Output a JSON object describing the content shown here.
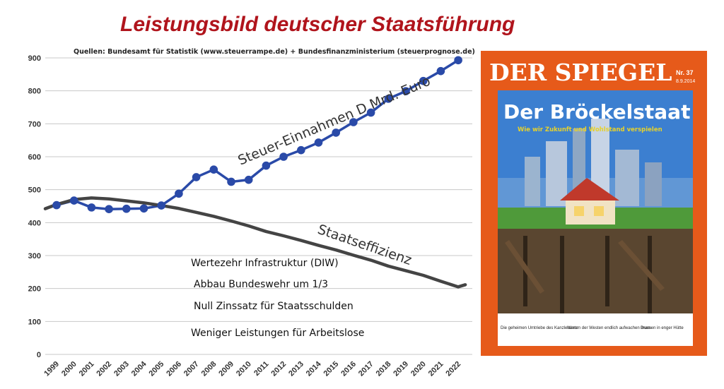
{
  "title": "Leistungsbild deutscher Staatsführung",
  "source": "Quellen: Bundesamt für Statistik  (www.steuerrampe.de) + Bundesfinanzministerium (steuerprognose.de)",
  "chart_data": {
    "type": "line",
    "ylim": [
      0,
      900
    ],
    "yticks": [
      0,
      100,
      200,
      300,
      400,
      500,
      600,
      700,
      800,
      900
    ],
    "x": [
      "1999",
      "2000",
      "2001",
      "2002",
      "2003",
      "2004",
      "2005",
      "2006",
      "2007",
      "2008",
      "2009",
      "2010",
      "2011",
      "2012",
      "2013",
      "2014",
      "2015",
      "2016",
      "2017",
      "2018",
      "2019",
      "2020",
      "2021",
      "2022"
    ],
    "series": [
      {
        "name": "Steuer-Einnahmen D Mrd. Euro",
        "color": "#2a4aa8",
        "marker": "circle",
        "values": [
          453,
          467,
          446,
          441,
          442,
          443,
          452,
          488,
          538,
          561,
          524,
          530,
          573,
          600,
          620,
          643,
          673,
          705,
          734,
          776,
          799,
          830,
          860,
          893
        ]
      },
      {
        "name": "Staatseffizienz",
        "color": "#444444",
        "marker": "none",
        "values": [
          455,
          470,
          475,
          472,
          466,
          460,
          452,
          443,
          431,
          419,
          405,
          390,
          373,
          360,
          346,
          331,
          317,
          301,
          286,
          268,
          254,
          240,
          222,
          205
        ]
      }
    ],
    "annotations": [
      "Wertezehr Infrastruktur (DIW)",
      "Abbau Bundeswehr um 1/3",
      "Null Zinssatz für Staatsschulden",
      "Weniger Leistungen für Arbeitslose"
    ],
    "grid": true
  },
  "magazine": {
    "masthead": "DER SPIEGEL",
    "issue_no": "Nr. 37",
    "issue_date": "8.9.2014",
    "headline": "Der Bröckelstaat",
    "subline": "Wie wir Zukunft und Wohlstand verspielen",
    "teasers": [
      "Die geheimen Umtriebe des Kanzleramts",
      "Warum der Westen endlich aufwachen muss",
      "Dramen in enger Hütte"
    ],
    "colors": {
      "frame": "#e65a1a",
      "sky": "#3c7fd0",
      "ground": "#5a4630"
    }
  }
}
